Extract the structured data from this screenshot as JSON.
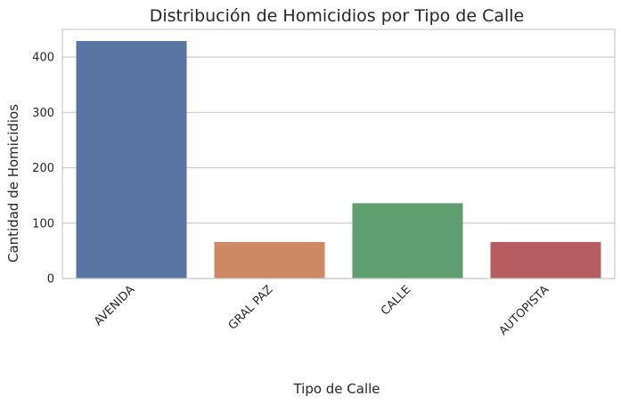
{
  "chart_data": {
    "type": "bar",
    "title": "Distribución de Homicidios por Tipo de Calle",
    "xlabel": "Tipo de Calle",
    "ylabel": "Cantidad de Homicidios",
    "categories": [
      "AVENIDA",
      "GRAL PAZ",
      "CALLE",
      "AUTOPISTA"
    ],
    "values": [
      429,
      66,
      136,
      66
    ],
    "colors": [
      "#5875a4",
      "#cc8963",
      "#5f9e6e",
      "#b55d60"
    ],
    "ylim": [
      0,
      450
    ],
    "yticks": [
      0,
      100,
      200,
      300,
      400
    ],
    "grid": true,
    "legend": "none"
  }
}
